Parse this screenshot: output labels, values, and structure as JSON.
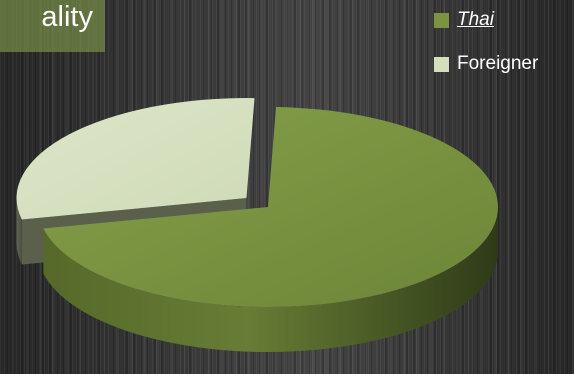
{
  "chart_data": {
    "type": "pie",
    "title": "ality",
    "categories": [
      "Thai",
      "Foreigner"
    ],
    "values": [
      71,
      29
    ],
    "legend_position": "top-right",
    "exploded": "Foreigner",
    "colors": [
      "#7a9440",
      "#d4dfbe"
    ]
  }
}
